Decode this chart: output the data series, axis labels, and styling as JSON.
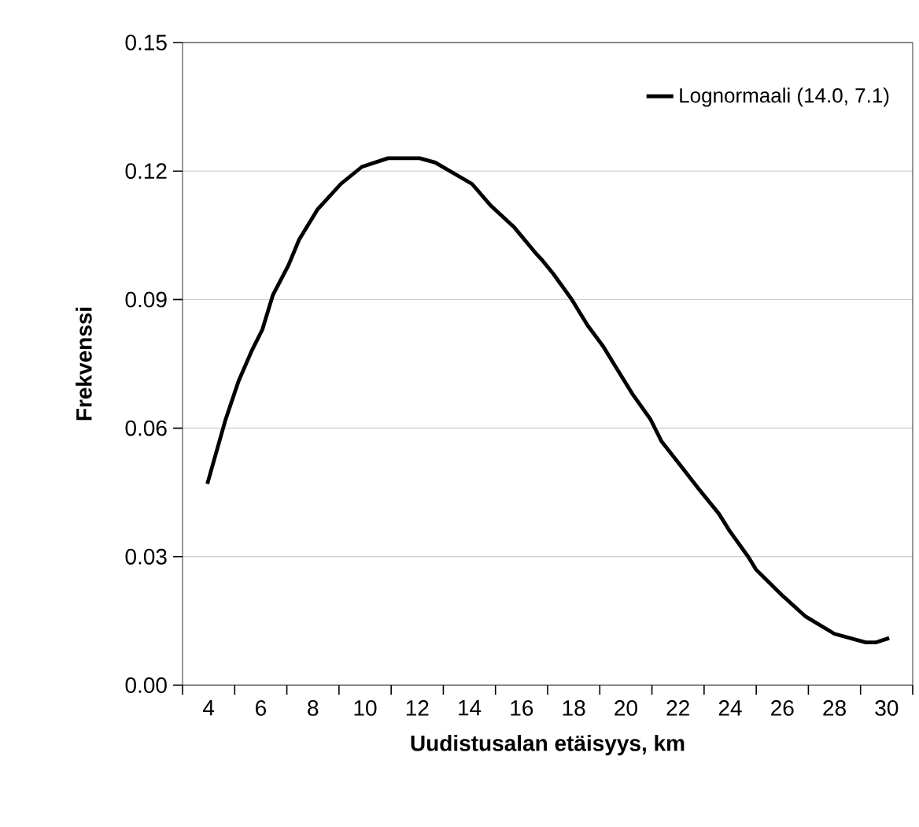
{
  "chart_data": {
    "type": "line",
    "xlabel": "Uudistusalan etäisyys, km",
    "ylabel": "Frekvenssi",
    "xlim": [
      3,
      31
    ],
    "xticks": [
      {
        "value": 3,
        "label": null
      },
      4,
      {
        "value": 5,
        "label": null
      },
      6,
      {
        "value": 7,
        "label": null
      },
      8,
      {
        "value": 9,
        "label": null
      },
      10,
      {
        "value": 11,
        "label": null
      },
      12,
      {
        "value": 13,
        "label": null
      },
      14,
      {
        "value": 15,
        "label": null
      },
      16,
      {
        "value": 17,
        "label": null
      },
      18,
      {
        "value": 19,
        "label": null
      },
      20,
      {
        "value": 21,
        "label": null
      },
      22,
      {
        "value": 23,
        "label": null
      },
      24,
      {
        "value": 25,
        "label": null
      },
      26,
      {
        "value": 27,
        "label": null
      },
      28,
      {
        "value": 29,
        "label": null
      },
      30,
      {
        "value": 31,
        "label": null
      }
    ],
    "ylim": [
      0,
      0.15
    ],
    "yticks": [
      {
        "value": 0,
        "label": "0.00"
      },
      0.03,
      0.06,
      0.09,
      0.12,
      0.15
    ],
    "grid": "y",
    "legend": "top right",
    "marker": "none",
    "line_style": "solid",
    "series": [
      {
        "name": "Lognormaali (14.0, 7.1)",
        "color": "#000000",
        "x": [
          3.95,
          4.65,
          5.15,
          5.65,
          6.06,
          6.46,
          7.06,
          7.47,
          8.17,
          9.07,
          9.88,
          10.88,
          12.09,
          12.69,
          14.1,
          14.81,
          15.7,
          16.52,
          16.82,
          17.22,
          17.93,
          18.53,
          19.14,
          19.54,
          20.25,
          20.95,
          21.36,
          22.26,
          22.77,
          23.57,
          23.98,
          24.69,
          24.99,
          25.99,
          26.9,
          28.0,
          29.2,
          29.6,
          30.1
        ],
        "values": [
          0.047,
          0.062,
          0.071,
          0.078,
          0.083,
          0.091,
          0.098,
          0.104,
          0.111,
          0.117,
          0.121,
          0.123,
          0.123,
          0.122,
          0.117,
          0.112,
          0.107,
          0.101,
          0.099,
          0.096,
          0.09,
          0.084,
          0.079,
          0.075,
          0.068,
          0.062,
          0.057,
          0.05,
          0.046,
          0.04,
          0.036,
          0.03,
          0.027,
          0.021,
          0.016,
          0.012,
          0.01,
          0.01,
          0.011
        ]
      }
    ]
  }
}
